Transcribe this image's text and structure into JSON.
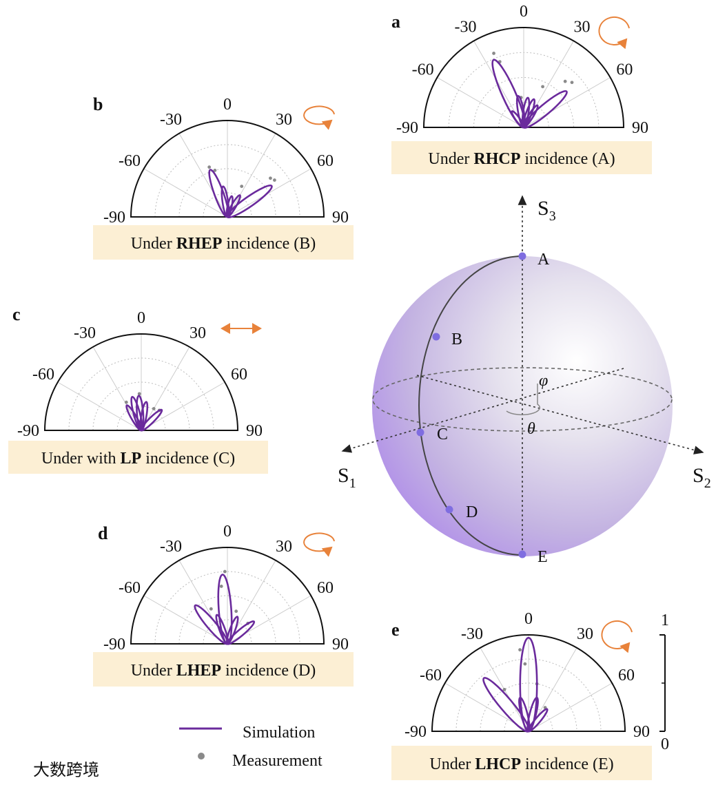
{
  "angle_ticks": [
    -90,
    -60,
    -30,
    0,
    30,
    60,
    90
  ],
  "radial_ticks": [
    0,
    1
  ],
  "panels": [
    {
      "label": "a",
      "caption": {
        "pre": "Under ",
        "bold": "RHCP",
        "post": " incidence (A)"
      },
      "simulation": [
        {
          "angle": -24,
          "value": 0.74
        },
        {
          "angle": 50,
          "value": 0.56
        },
        {
          "angle": -10,
          "value": 0.32
        },
        {
          "angle": 8,
          "value": 0.3
        },
        {
          "angle": 20,
          "value": 0.3
        },
        {
          "angle": 32,
          "value": 0.26
        },
        {
          "angle": -36,
          "value": 0.2
        }
      ],
      "measurement": [
        {
          "angle": -22,
          "value": 0.8
        },
        {
          "angle": -20,
          "value": 0.7
        },
        {
          "angle": 42,
          "value": 0.62
        },
        {
          "angle": 47,
          "value": 0.66
        },
        {
          "angle": 25,
          "value": 0.45
        },
        {
          "angle": -5,
          "value": 0.3
        }
      ]
    },
    {
      "label": "b",
      "caption": {
        "pre": "Under ",
        "bold": "RHEP",
        "post": " incidence (B)"
      },
      "simulation": [
        {
          "angle": -20,
          "value": 0.52
        },
        {
          "angle": 55,
          "value": 0.56
        },
        {
          "angle": 12,
          "value": 0.22
        },
        {
          "angle": -8,
          "value": 0.32
        },
        {
          "angle": 30,
          "value": 0.26
        }
      ],
      "measurement": [
        {
          "angle": -20,
          "value": 0.55
        },
        {
          "angle": -15,
          "value": 0.5
        },
        {
          "angle": 48,
          "value": 0.6
        },
        {
          "angle": 52,
          "value": 0.62
        },
        {
          "angle": 25,
          "value": 0.35
        }
      ]
    },
    {
      "label": "c",
      "caption": {
        "pre": "Under with ",
        "bold": "LP",
        "post": " incidence (C)"
      },
      "simulation": [
        {
          "angle": -30,
          "value": 0.3
        },
        {
          "angle": -15,
          "value": 0.36
        },
        {
          "angle": -4,
          "value": 0.36
        },
        {
          "angle": 10,
          "value": 0.3
        },
        {
          "angle": 45,
          "value": 0.3
        }
      ],
      "measurement": [
        {
          "angle": -28,
          "value": 0.33
        },
        {
          "angle": -3,
          "value": 0.38
        },
        {
          "angle": 30,
          "value": 0.26
        },
        {
          "angle": 42,
          "value": 0.28
        }
      ]
    },
    {
      "label": "d",
      "caption": {
        "pre": "Under ",
        "bold": "LHEP",
        "post": " incidence (D)"
      },
      "simulation": [
        {
          "angle": -40,
          "value": 0.52
        },
        {
          "angle": -4,
          "value": 0.72
        },
        {
          "angle": 50,
          "value": 0.36
        },
        {
          "angle": 20,
          "value": 0.3
        },
        {
          "angle": -20,
          "value": 0.32
        }
      ],
      "measurement": [
        {
          "angle": -2,
          "value": 0.75
        },
        {
          "angle": -6,
          "value": 0.6
        },
        {
          "angle": -25,
          "value": 0.4
        },
        {
          "angle": 15,
          "value": 0.35
        },
        {
          "angle": 45,
          "value": 0.3
        }
      ]
    },
    {
      "label": "e",
      "caption": {
        "pre": "Under ",
        "bold": "LHCP",
        "post": " incidence (E)"
      },
      "simulation": [
        {
          "angle": 0,
          "value": 0.97
        },
        {
          "angle": -40,
          "value": 0.72
        },
        {
          "angle": 40,
          "value": 0.3
        },
        {
          "angle": 14,
          "value": 0.36
        },
        {
          "angle": -14,
          "value": 0.36
        }
      ],
      "measurement": [
        {
          "angle": -6,
          "value": 0.85
        },
        {
          "angle": -3,
          "value": 0.7
        },
        {
          "angle": -30,
          "value": 0.5
        },
        {
          "angle": 10,
          "value": 0.5
        },
        {
          "angle": 35,
          "value": 0.3
        }
      ]
    }
  ],
  "sphere": {
    "axes": [
      {
        "letter": "S",
        "sub": "3"
      },
      {
        "letter": "S",
        "sub": "1"
      },
      {
        "letter": "S",
        "sub": "2"
      }
    ],
    "points": [
      "A",
      "B",
      "C",
      "D",
      "E"
    ],
    "phi": "φ",
    "theta": "θ"
  },
  "legend": {
    "simulation": "Simulation",
    "measurement": "Measurement",
    "sim_color": "#6a2a9c",
    "meas_color": "#8a8a8a"
  },
  "watermark": "大数跨境"
}
